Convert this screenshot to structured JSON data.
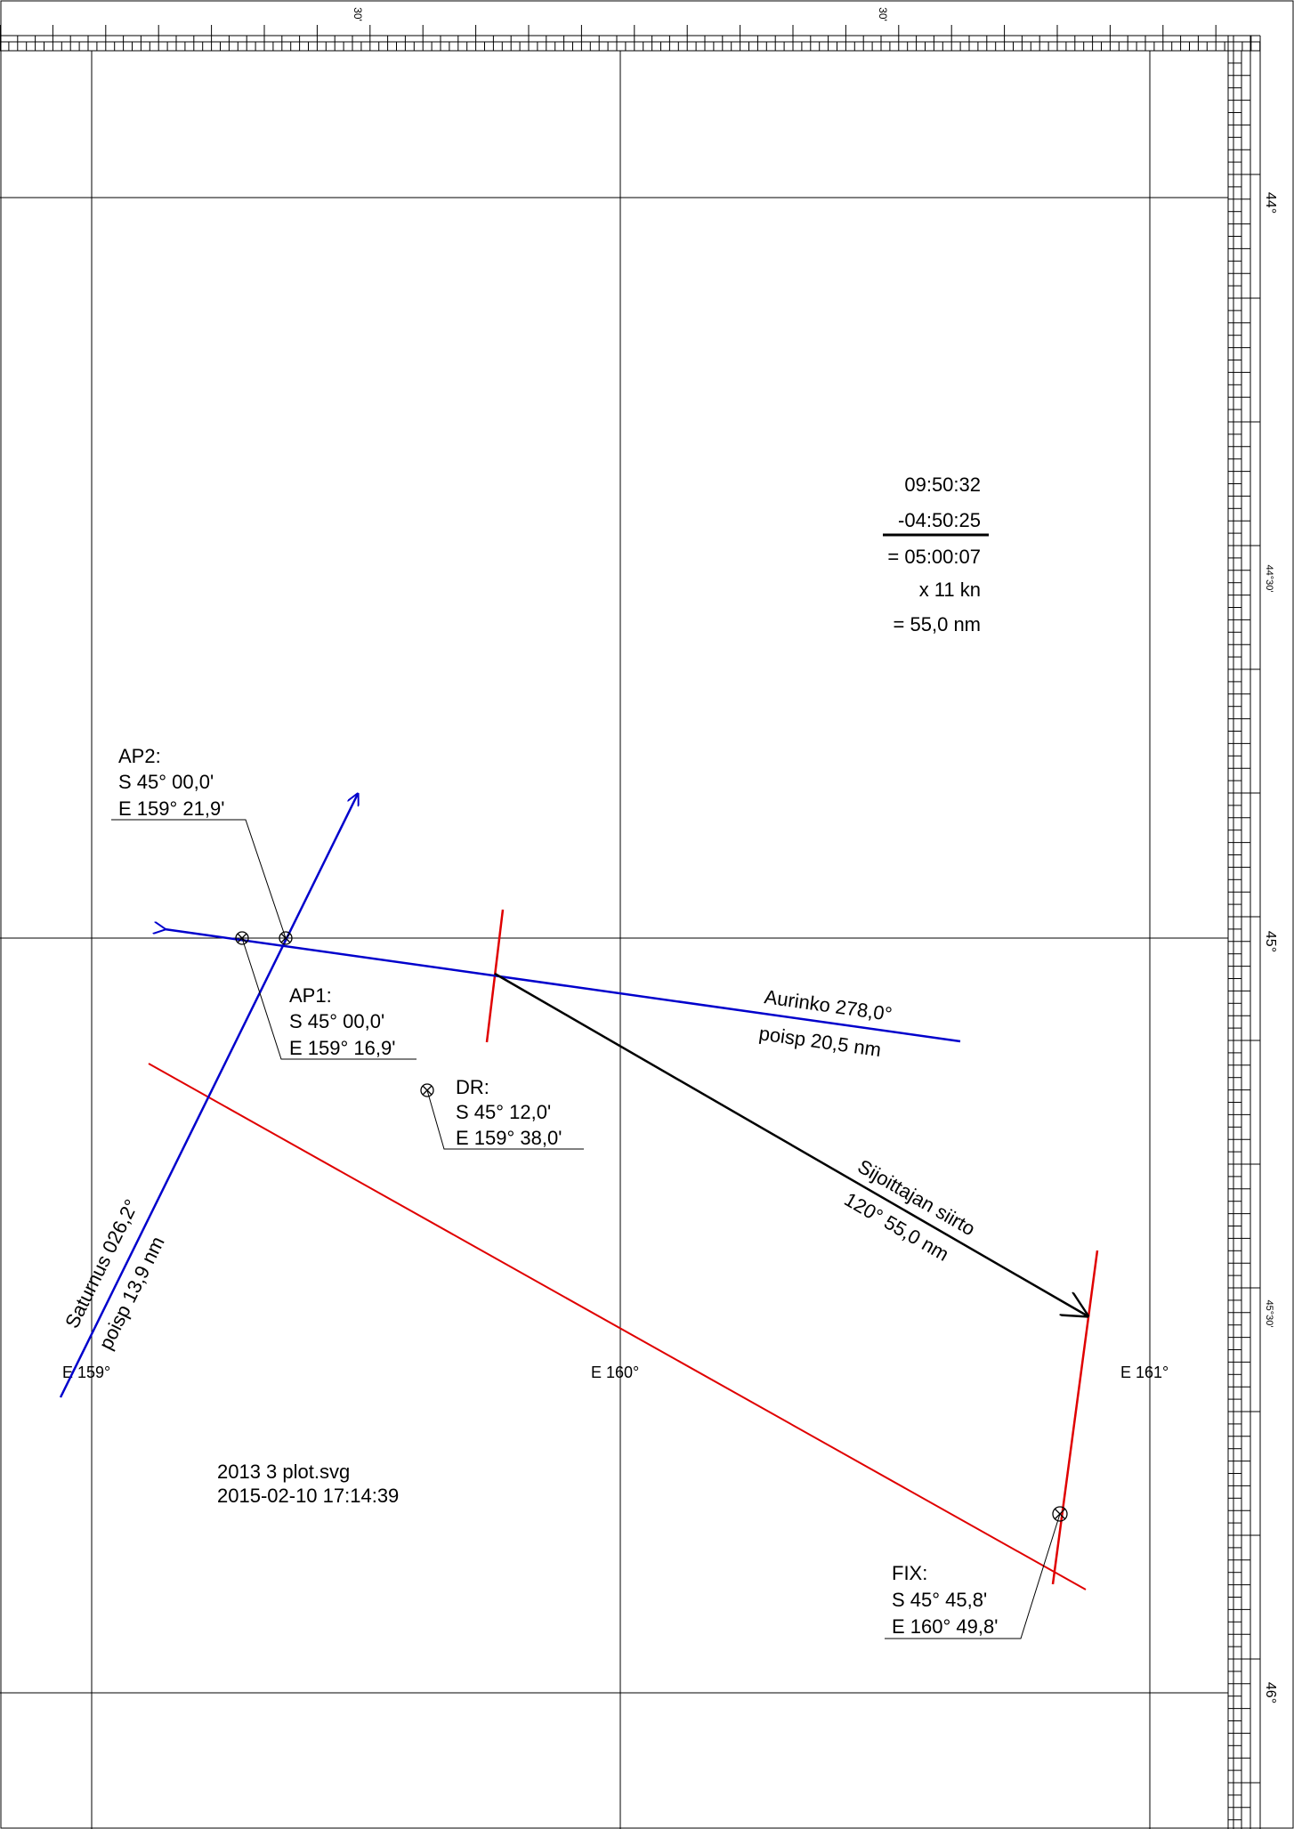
{
  "scale": {
    "top_marks": [
      "30'",
      "30'"
    ],
    "right_marks": [
      "44°",
      "44°30'",
      "45°",
      "45°30'",
      "46°"
    ]
  },
  "meridian_labels": [
    "E 159°",
    "E 160°",
    "E 161°"
  ],
  "calc": {
    "line1": "09:50:32",
    "line2": "-04:50:25",
    "line3": "= 05:00:07",
    "line4": "x 11 kn",
    "line5": "= 55,0 nm"
  },
  "ap2": {
    "title": "AP2:",
    "lat": "S 45° 00,0'",
    "lon": "E 159° 21,9'"
  },
  "ap1": {
    "title": "AP1:",
    "lat": "S 45° 00,0'",
    "lon": "E 159° 16,9'"
  },
  "dr": {
    "title": "DR:",
    "lat": "S 45° 12,0'",
    "lon": "E 159° 38,0'"
  },
  "fix": {
    "title": "FIX:",
    "lat": "S 45° 45,8'",
    "lon": "E 160° 49,8'"
  },
  "aurinko": {
    "line1": "Aurinko 278,0°",
    "line2": "poisp 20,5 nm"
  },
  "saturnus": {
    "line1": "Saturnus 026,2°",
    "line2": "poisp 13,9 nm"
  },
  "siirto": {
    "line1": "Sijoittajan siirto",
    "line2": "120° 55,0 nm"
  },
  "file": {
    "name": "2013 3 plot.svg",
    "date": "2015-02-10 17:14:39"
  },
  "colors": {
    "lop": "#0000cc",
    "transfer": "#e00000",
    "grid": "#000000"
  }
}
